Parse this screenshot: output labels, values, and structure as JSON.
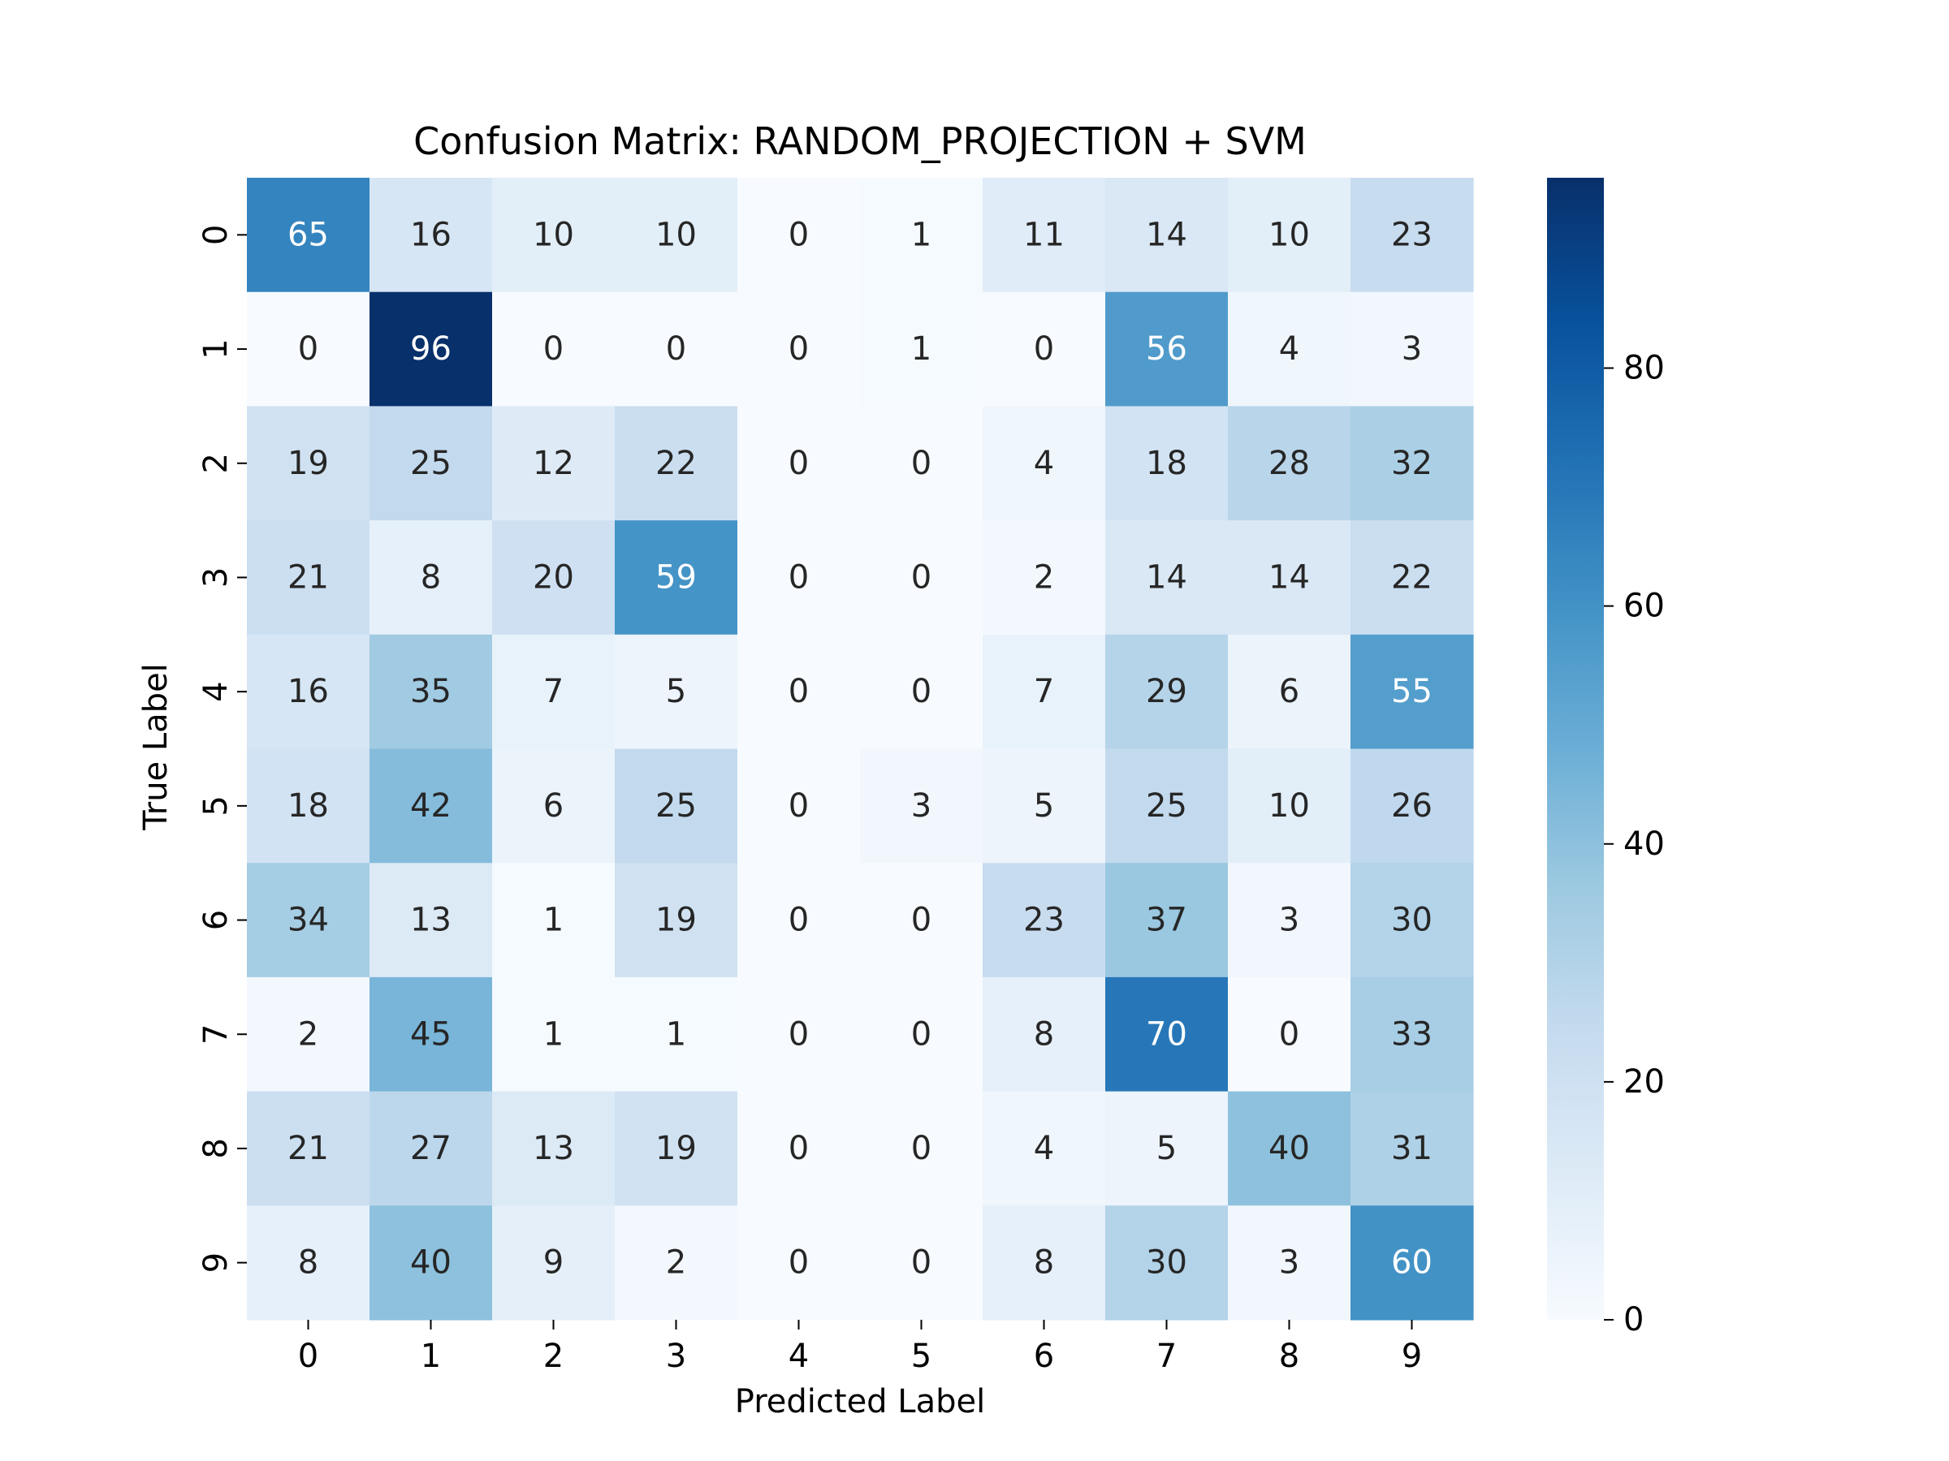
{
  "chart_data": {
    "type": "heatmap",
    "title": "Confusion Matrix: RANDOM_PROJECTION + SVM",
    "xlabel": "Predicted Label",
    "ylabel": "True Label",
    "x_categories": [
      "0",
      "1",
      "2",
      "3",
      "4",
      "5",
      "6",
      "7",
      "8",
      "9"
    ],
    "y_categories": [
      "0",
      "1",
      "2",
      "3",
      "4",
      "5",
      "6",
      "7",
      "8",
      "9"
    ],
    "values": [
      [
        65,
        16,
        10,
        10,
        0,
        1,
        11,
        14,
        10,
        23
      ],
      [
        0,
        96,
        0,
        0,
        0,
        1,
        0,
        56,
        4,
        3
      ],
      [
        19,
        25,
        12,
        22,
        0,
        0,
        4,
        18,
        28,
        32
      ],
      [
        21,
        8,
        20,
        59,
        0,
        0,
        2,
        14,
        14,
        22
      ],
      [
        16,
        35,
        7,
        5,
        0,
        0,
        7,
        29,
        6,
        55
      ],
      [
        18,
        42,
        6,
        25,
        0,
        3,
        5,
        25,
        10,
        26
      ],
      [
        34,
        13,
        1,
        19,
        0,
        0,
        23,
        37,
        3,
        30
      ],
      [
        2,
        45,
        1,
        1,
        0,
        0,
        8,
        70,
        0,
        33
      ],
      [
        21,
        27,
        13,
        19,
        0,
        0,
        4,
        5,
        40,
        31
      ],
      [
        8,
        40,
        9,
        2,
        0,
        0,
        8,
        30,
        3,
        60
      ]
    ],
    "colormap": "Blues",
    "value_range": [
      0,
      96
    ],
    "colorbar": {
      "ticks": [
        0,
        20,
        40,
        60,
        80
      ],
      "tick_labels": [
        "0",
        "20",
        "40",
        "60",
        "80"
      ]
    },
    "grid": false,
    "legend": "colorbar-right"
  }
}
